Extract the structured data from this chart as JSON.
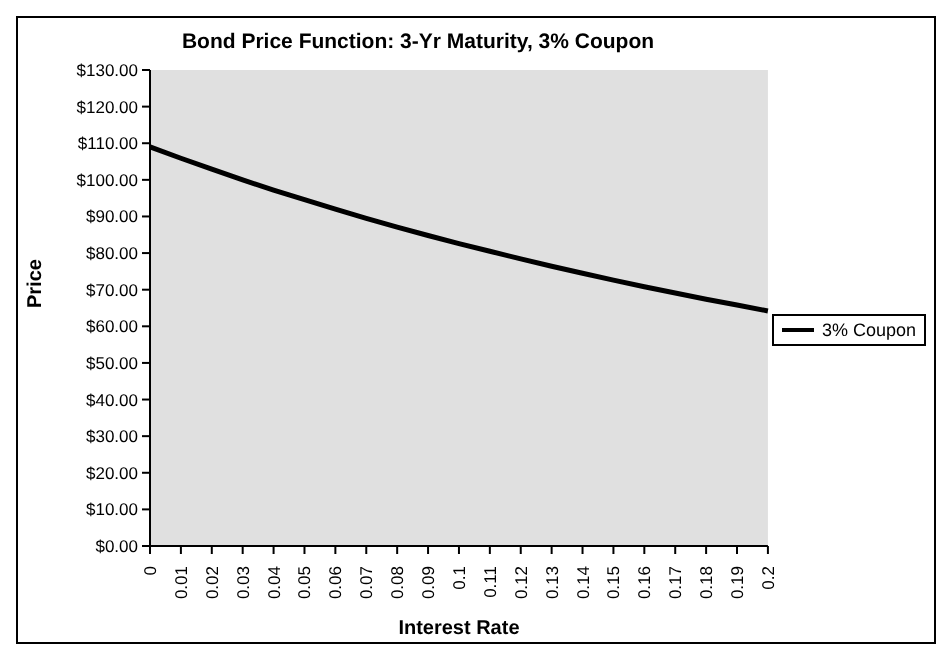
{
  "chart_data": {
    "type": "line",
    "title": "Bond Price Function: 3-Yr Maturity, 3% Coupon",
    "xlabel": "Interest Rate",
    "ylabel": "Price",
    "categories": [
      "0",
      "0.01",
      "0.02",
      "0.03",
      "0.04",
      "0.05",
      "0.06",
      "0.07",
      "0.08",
      "0.09",
      "0.1",
      "0.11",
      "0.12",
      "0.13",
      "0.14",
      "0.15",
      "0.16",
      "0.17",
      "0.18",
      "0.19",
      "0.2"
    ],
    "series": [
      {
        "name": "3% Coupon",
        "color": "#000000",
        "values": [
          109.0,
          105.9,
          102.9,
          100.0,
          97.2,
          94.6,
          92.0,
          89.5,
          87.1,
          84.8,
          82.6,
          80.5,
          78.4,
          76.4,
          74.5,
          72.6,
          70.8,
          69.1,
          67.4,
          65.8,
          64.2
        ]
      }
    ],
    "ylim": [
      0,
      130
    ],
    "yticks": [
      {
        "value": 0,
        "label": "$0.00"
      },
      {
        "value": 10,
        "label": "$10.00"
      },
      {
        "value": 20,
        "label": "$20.00"
      },
      {
        "value": 30,
        "label": "$30.00"
      },
      {
        "value": 40,
        "label": "$40.00"
      },
      {
        "value": 50,
        "label": "$50.00"
      },
      {
        "value": 60,
        "label": "$60.00"
      },
      {
        "value": 70,
        "label": "$70.00"
      },
      {
        "value": 80,
        "label": "$80.00"
      },
      {
        "value": 90,
        "label": "$90.00"
      },
      {
        "value": 100,
        "label": "$100.00"
      },
      {
        "value": 110,
        "label": "$110.00"
      },
      {
        "value": 120,
        "label": "$120.00"
      },
      {
        "value": 130,
        "label": "$130.00"
      }
    ],
    "grid": false,
    "legend": "right",
    "marker": "none",
    "line_style": "solid"
  }
}
